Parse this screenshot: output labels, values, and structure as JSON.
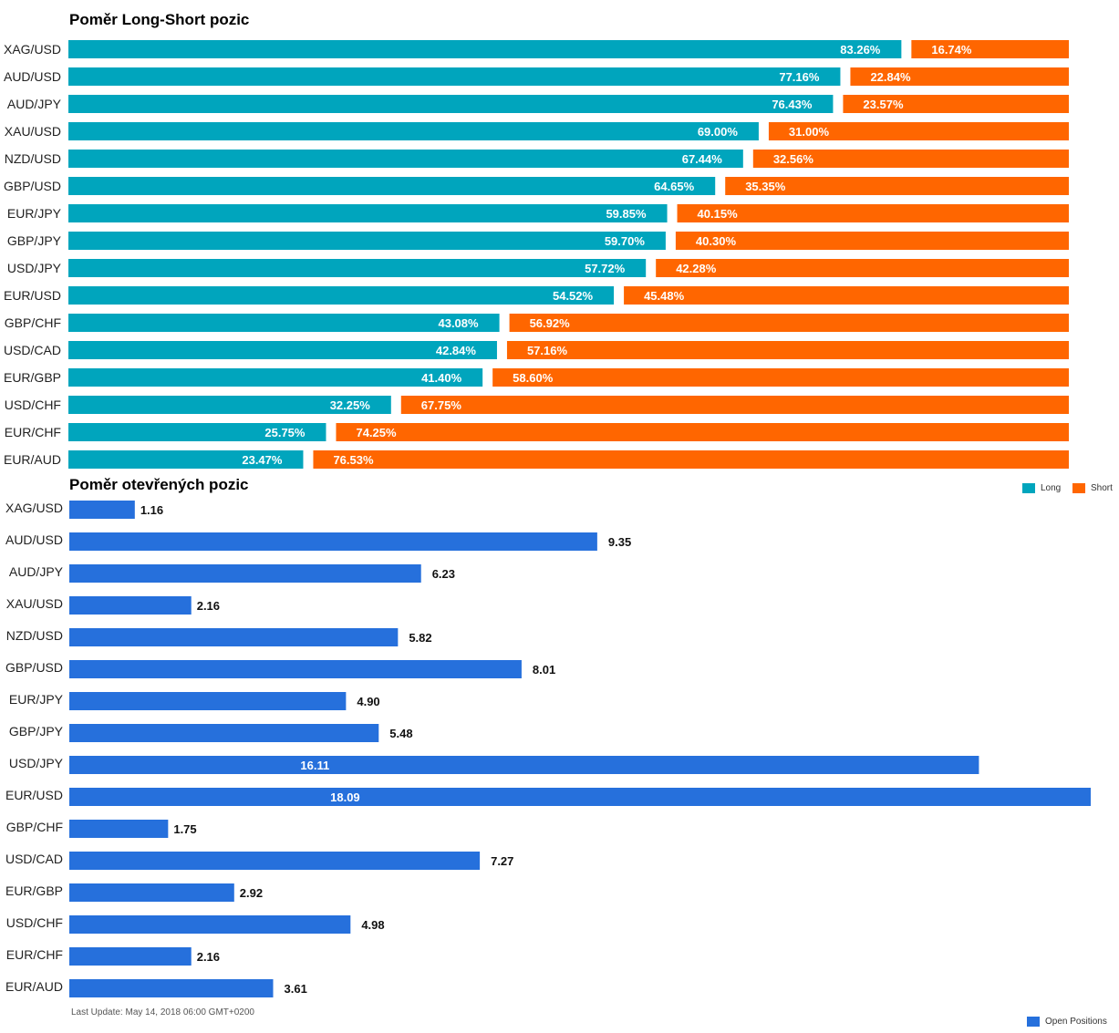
{
  "titles": {
    "ratio": "Poměr Long-Short pozic",
    "open": "Poměr otevřených pozic"
  },
  "legend": {
    "long": "Long",
    "short": "Short",
    "open_positions": "Open Positions"
  },
  "last_update": "Last Update: May 14, 2018 06:00 GMT+0200",
  "colors": {
    "long": "#00a5bd",
    "short": "#ff6600",
    "open": "#2670dc"
  },
  "chart_data": [
    {
      "type": "bar",
      "title": "Poměr Long-Short pozic",
      "orientation": "horizontal",
      "stacked": true,
      "categories": [
        "XAG/USD",
        "AUD/USD",
        "AUD/JPY",
        "XAU/USD",
        "NZD/USD",
        "GBP/USD",
        "EUR/JPY",
        "GBP/JPY",
        "USD/JPY",
        "EUR/USD",
        "GBP/CHF",
        "USD/CAD",
        "EUR/GBP",
        "USD/CHF",
        "EUR/CHF",
        "EUR/AUD"
      ],
      "series": [
        {
          "name": "Long",
          "values": [
            83.26,
            77.16,
            76.43,
            69.0,
            67.44,
            64.65,
            59.85,
            59.7,
            57.72,
            54.52,
            43.08,
            42.84,
            41.4,
            32.25,
            25.75,
            23.47
          ],
          "labels": [
            "83.26%",
            "77.16%",
            "76.43%",
            "69.00%",
            "67.44%",
            "64.65%",
            "59.85%",
            "59.70%",
            "57.72%",
            "54.52%",
            "43.08%",
            "42.84%",
            "41.40%",
            "32.25%",
            "25.75%",
            "23.47%"
          ]
        },
        {
          "name": "Short",
          "values": [
            16.74,
            22.84,
            23.57,
            31.0,
            32.56,
            35.35,
            40.15,
            40.3,
            42.28,
            45.48,
            56.92,
            57.16,
            58.6,
            67.75,
            74.25,
            76.53
          ],
          "labels": [
            "16.74%",
            "22.84%",
            "23.57%",
            "31.00%",
            "32.56%",
            "35.35%",
            "40.15%",
            "40.30%",
            "42.28%",
            "45.48%",
            "56.92%",
            "57.16%",
            "58.60%",
            "67.75%",
            "74.25%",
            "76.53%"
          ]
        }
      ],
      "xlim": [
        0,
        100
      ],
      "legend_position": "bottom-right"
    },
    {
      "type": "bar",
      "title": "Poměr otevřených pozic",
      "orientation": "horizontal",
      "categories": [
        "XAG/USD",
        "AUD/USD",
        "AUD/JPY",
        "XAU/USD",
        "NZD/USD",
        "GBP/USD",
        "EUR/JPY",
        "GBP/JPY",
        "USD/JPY",
        "EUR/USD",
        "GBP/CHF",
        "USD/CAD",
        "EUR/GBP",
        "USD/CHF",
        "EUR/CHF",
        "EUR/AUD"
      ],
      "series": [
        {
          "name": "Open Positions",
          "values": [
            1.16,
            9.35,
            6.23,
            2.16,
            5.82,
            8.01,
            4.9,
            5.48,
            16.11,
            18.09,
            1.75,
            7.27,
            2.92,
            4.98,
            2.16,
            3.61
          ],
          "labels": [
            "1.16",
            "9.35",
            "6.23",
            "2.16",
            "5.82",
            "8.01",
            "4.90",
            "5.48",
            "16.11",
            "18.09",
            "1.75",
            "7.27",
            "2.92",
            "4.98",
            "2.16",
            "3.61"
          ]
        }
      ],
      "legend_position": "bottom-right"
    }
  ]
}
